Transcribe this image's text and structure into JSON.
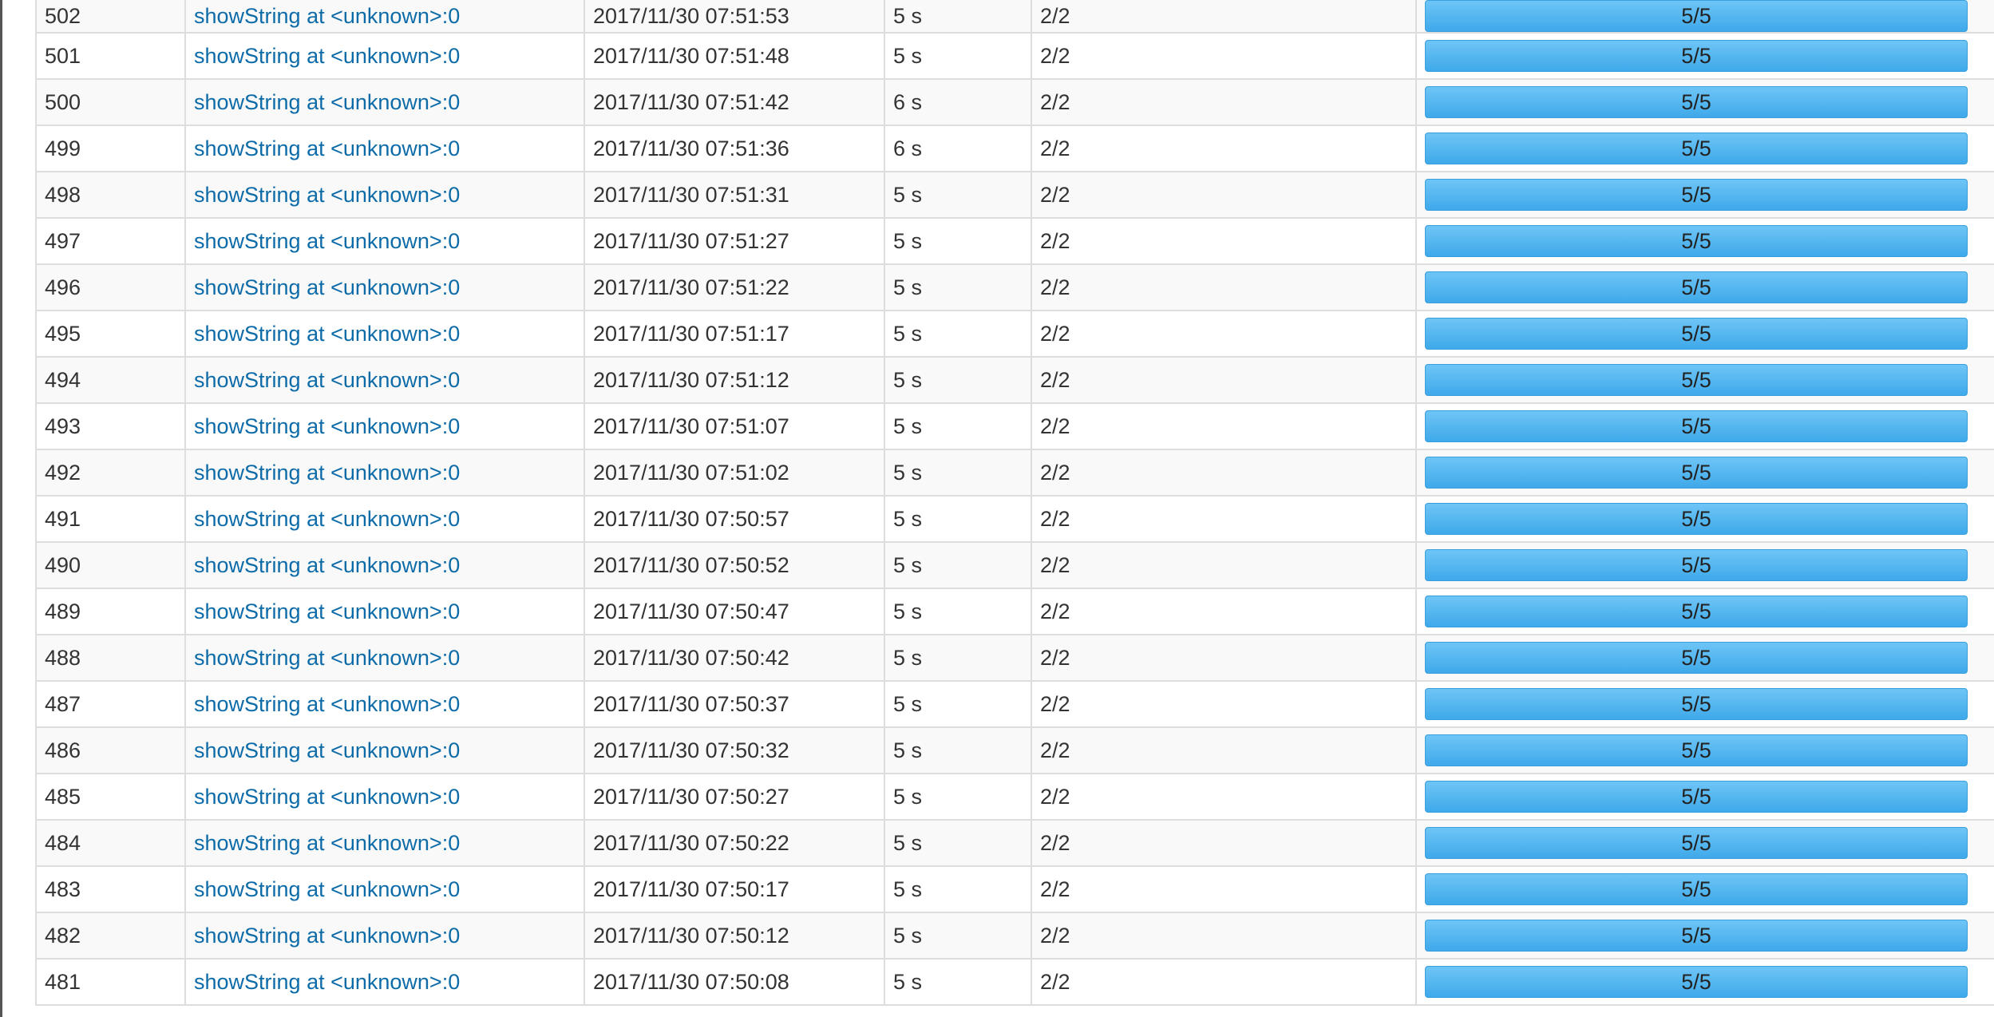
{
  "jobs_table": {
    "rows": [
      {
        "id": "502",
        "description": "showString at <unknown>:0",
        "submitted": "2017/11/30 07:51:53",
        "duration": "5 s",
        "stages": "2/2",
        "tasks": "5/5"
      },
      {
        "id": "501",
        "description": "showString at <unknown>:0",
        "submitted": "2017/11/30 07:51:48",
        "duration": "5 s",
        "stages": "2/2",
        "tasks": "5/5"
      },
      {
        "id": "500",
        "description": "showString at <unknown>:0",
        "submitted": "2017/11/30 07:51:42",
        "duration": "6 s",
        "stages": "2/2",
        "tasks": "5/5"
      },
      {
        "id": "499",
        "description": "showString at <unknown>:0",
        "submitted": "2017/11/30 07:51:36",
        "duration": "6 s",
        "stages": "2/2",
        "tasks": "5/5"
      },
      {
        "id": "498",
        "description": "showString at <unknown>:0",
        "submitted": "2017/11/30 07:51:31",
        "duration": "5 s",
        "stages": "2/2",
        "tasks": "5/5"
      },
      {
        "id": "497",
        "description": "showString at <unknown>:0",
        "submitted": "2017/11/30 07:51:27",
        "duration": "5 s",
        "stages": "2/2",
        "tasks": "5/5"
      },
      {
        "id": "496",
        "description": "showString at <unknown>:0",
        "submitted": "2017/11/30 07:51:22",
        "duration": "5 s",
        "stages": "2/2",
        "tasks": "5/5"
      },
      {
        "id": "495",
        "description": "showString at <unknown>:0",
        "submitted": "2017/11/30 07:51:17",
        "duration": "5 s",
        "stages": "2/2",
        "tasks": "5/5"
      },
      {
        "id": "494",
        "description": "showString at <unknown>:0",
        "submitted": "2017/11/30 07:51:12",
        "duration": "5 s",
        "stages": "2/2",
        "tasks": "5/5"
      },
      {
        "id": "493",
        "description": "showString at <unknown>:0",
        "submitted": "2017/11/30 07:51:07",
        "duration": "5 s",
        "stages": "2/2",
        "tasks": "5/5"
      },
      {
        "id": "492",
        "description": "showString at <unknown>:0",
        "submitted": "2017/11/30 07:51:02",
        "duration": "5 s",
        "stages": "2/2",
        "tasks": "5/5"
      },
      {
        "id": "491",
        "description": "showString at <unknown>:0",
        "submitted": "2017/11/30 07:50:57",
        "duration": "5 s",
        "stages": "2/2",
        "tasks": "5/5"
      },
      {
        "id": "490",
        "description": "showString at <unknown>:0",
        "submitted": "2017/11/30 07:50:52",
        "duration": "5 s",
        "stages": "2/2",
        "tasks": "5/5"
      },
      {
        "id": "489",
        "description": "showString at <unknown>:0",
        "submitted": "2017/11/30 07:50:47",
        "duration": "5 s",
        "stages": "2/2",
        "tasks": "5/5"
      },
      {
        "id": "488",
        "description": "showString at <unknown>:0",
        "submitted": "2017/11/30 07:50:42",
        "duration": "5 s",
        "stages": "2/2",
        "tasks": "5/5"
      },
      {
        "id": "487",
        "description": "showString at <unknown>:0",
        "submitted": "2017/11/30 07:50:37",
        "duration": "5 s",
        "stages": "2/2",
        "tasks": "5/5"
      },
      {
        "id": "486",
        "description": "showString at <unknown>:0",
        "submitted": "2017/11/30 07:50:32",
        "duration": "5 s",
        "stages": "2/2",
        "tasks": "5/5"
      },
      {
        "id": "485",
        "description": "showString at <unknown>:0",
        "submitted": "2017/11/30 07:50:27",
        "duration": "5 s",
        "stages": "2/2",
        "tasks": "5/5"
      },
      {
        "id": "484",
        "description": "showString at <unknown>:0",
        "submitted": "2017/11/30 07:50:22",
        "duration": "5 s",
        "stages": "2/2",
        "tasks": "5/5"
      },
      {
        "id": "483",
        "description": "showString at <unknown>:0",
        "submitted": "2017/11/30 07:50:17",
        "duration": "5 s",
        "stages": "2/2",
        "tasks": "5/5"
      },
      {
        "id": "482",
        "description": "showString at <unknown>:0",
        "submitted": "2017/11/30 07:50:12",
        "duration": "5 s",
        "stages": "2/2",
        "tasks": "5/5"
      },
      {
        "id": "481",
        "description": "showString at <unknown>:0",
        "submitted": "2017/11/30 07:50:08",
        "duration": "5 s",
        "stages": "2/2",
        "tasks": "5/5"
      }
    ]
  },
  "colors": {
    "link": "#0d6ba8",
    "progress": "#4fb3f0",
    "row_alt": "#f9f9f9",
    "border": "#dddddd"
  }
}
